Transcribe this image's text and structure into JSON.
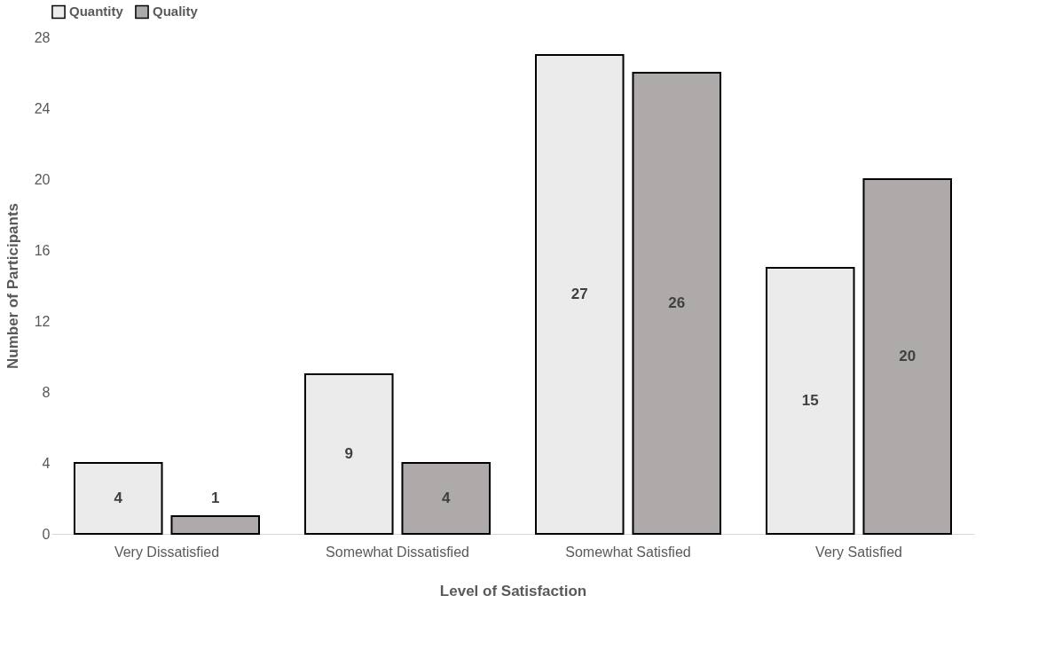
{
  "chart_data": {
    "type": "bar",
    "xlabel": "Level of Satisfaction",
    "ylabel": "Number of Participants",
    "categories": [
      "Very Dissatisfied",
      "Somewhat Dissatisfied",
      "Somewhat Satisfied",
      "Very Satisfied"
    ],
    "series": [
      {
        "name": "Quantity",
        "color": "#ebebeb",
        "values": [
          4,
          9,
          27,
          15
        ]
      },
      {
        "name": "Quality",
        "color": "#aeaaaa",
        "values": [
          1,
          4,
          26,
          20
        ]
      }
    ],
    "ylim": [
      0,
      28
    ],
    "yticks": [
      0,
      4,
      8,
      12,
      16,
      20,
      24,
      28
    ],
    "grid": false,
    "legend": "top",
    "data_labels": true
  }
}
